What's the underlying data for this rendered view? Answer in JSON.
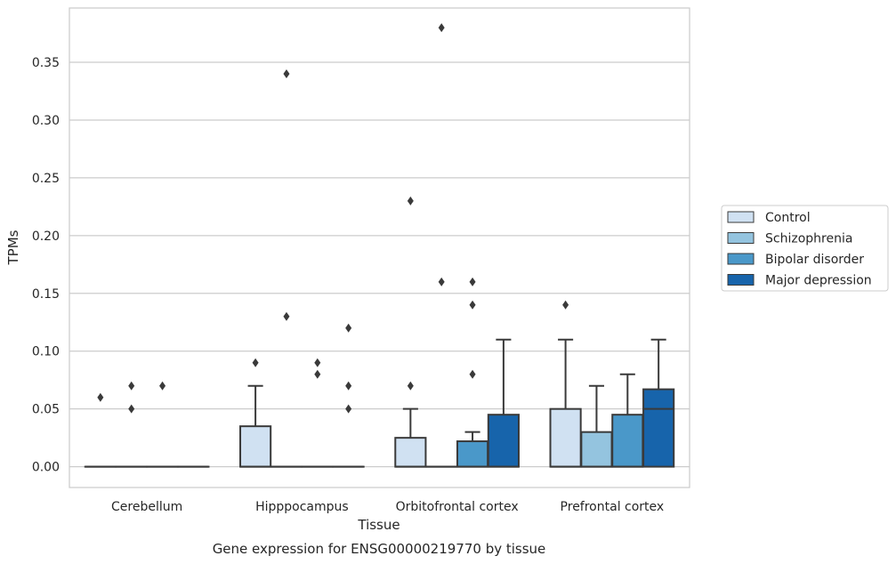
{
  "chart_data": {
    "type": "box",
    "title": "Gene expression for ENSG00000219770 by tissue",
    "xlabel": "Tissue",
    "ylabel": "TPMs",
    "ylim": [
      -0.018,
      0.397
    ],
    "yticks": [
      "0.00",
      "0.05",
      "0.10",
      "0.15",
      "0.20",
      "0.25",
      "0.30",
      "0.35"
    ],
    "grid": "horizontal",
    "legend_position": "right",
    "categories": [
      "Cerebellum",
      "Hipppocampus",
      "Orbitofrontal cortex",
      "Prefrontal cortex"
    ],
    "series": [
      {
        "name": "Control",
        "color": "#d0e1f2",
        "boxes": [
          {
            "q1": 0,
            "median": 0,
            "q3": 0,
            "whisker_low": 0,
            "whisker_high": 0,
            "outliers": [
              0.06
            ]
          },
          {
            "q1": 0,
            "median": 0,
            "q3": 0.035,
            "whisker_low": 0,
            "whisker_high": 0.07,
            "outliers": [
              0.09
            ]
          },
          {
            "q1": 0,
            "median": 0,
            "q3": 0.025,
            "whisker_low": 0,
            "whisker_high": 0.05,
            "outliers": [
              0.07,
              0.23
            ]
          },
          {
            "q1": 0,
            "median": 0,
            "q3": 0.05,
            "whisker_low": 0,
            "whisker_high": 0.11,
            "outliers": [
              0.14
            ]
          }
        ]
      },
      {
        "name": "Schizophrenia",
        "color": "#94c4df",
        "boxes": [
          {
            "q1": 0,
            "median": 0,
            "q3": 0,
            "whisker_low": 0,
            "whisker_high": 0,
            "outliers": [
              0.05,
              0.07
            ]
          },
          {
            "q1": 0,
            "median": 0,
            "q3": 0,
            "whisker_low": 0,
            "whisker_high": 0,
            "outliers": [
              0.13,
              0.34
            ]
          },
          {
            "q1": 0,
            "median": 0,
            "q3": 0,
            "whisker_low": 0,
            "whisker_high": 0,
            "outliers": [
              0.16,
              0.38
            ]
          },
          {
            "q1": 0,
            "median": 0,
            "q3": 0.03,
            "whisker_low": 0,
            "whisker_high": 0.07,
            "outliers": []
          }
        ]
      },
      {
        "name": "Bipolar disorder",
        "color": "#4a98c9",
        "boxes": [
          {
            "q1": 0,
            "median": 0,
            "q3": 0,
            "whisker_low": 0,
            "whisker_high": 0,
            "outliers": [
              0.07
            ]
          },
          {
            "q1": 0,
            "median": 0,
            "q3": 0,
            "whisker_low": 0,
            "whisker_high": 0,
            "outliers": [
              0.08,
              0.09
            ]
          },
          {
            "q1": 0,
            "median": 0,
            "q3": 0.022,
            "whisker_low": 0,
            "whisker_high": 0.03,
            "outliers": [
              0.08,
              0.14,
              0.16
            ]
          },
          {
            "q1": 0,
            "median": 0,
            "q3": 0.045,
            "whisker_low": 0,
            "whisker_high": 0.08,
            "outliers": []
          }
        ]
      },
      {
        "name": "Major depression",
        "color": "#1764ab",
        "boxes": [
          {
            "q1": 0,
            "median": 0,
            "q3": 0,
            "whisker_low": 0,
            "whisker_high": 0,
            "outliers": []
          },
          {
            "q1": 0,
            "median": 0,
            "q3": 0,
            "whisker_low": 0,
            "whisker_high": 0,
            "outliers": [
              0.05,
              0.07,
              0.12
            ]
          },
          {
            "q1": 0,
            "median": 0,
            "q3": 0.045,
            "whisker_low": 0,
            "whisker_high": 0.11,
            "outliers": []
          },
          {
            "q1": 0,
            "median": 0.05,
            "q3": 0.067,
            "whisker_low": 0,
            "whisker_high": 0.11,
            "outliers": []
          }
        ]
      }
    ]
  }
}
